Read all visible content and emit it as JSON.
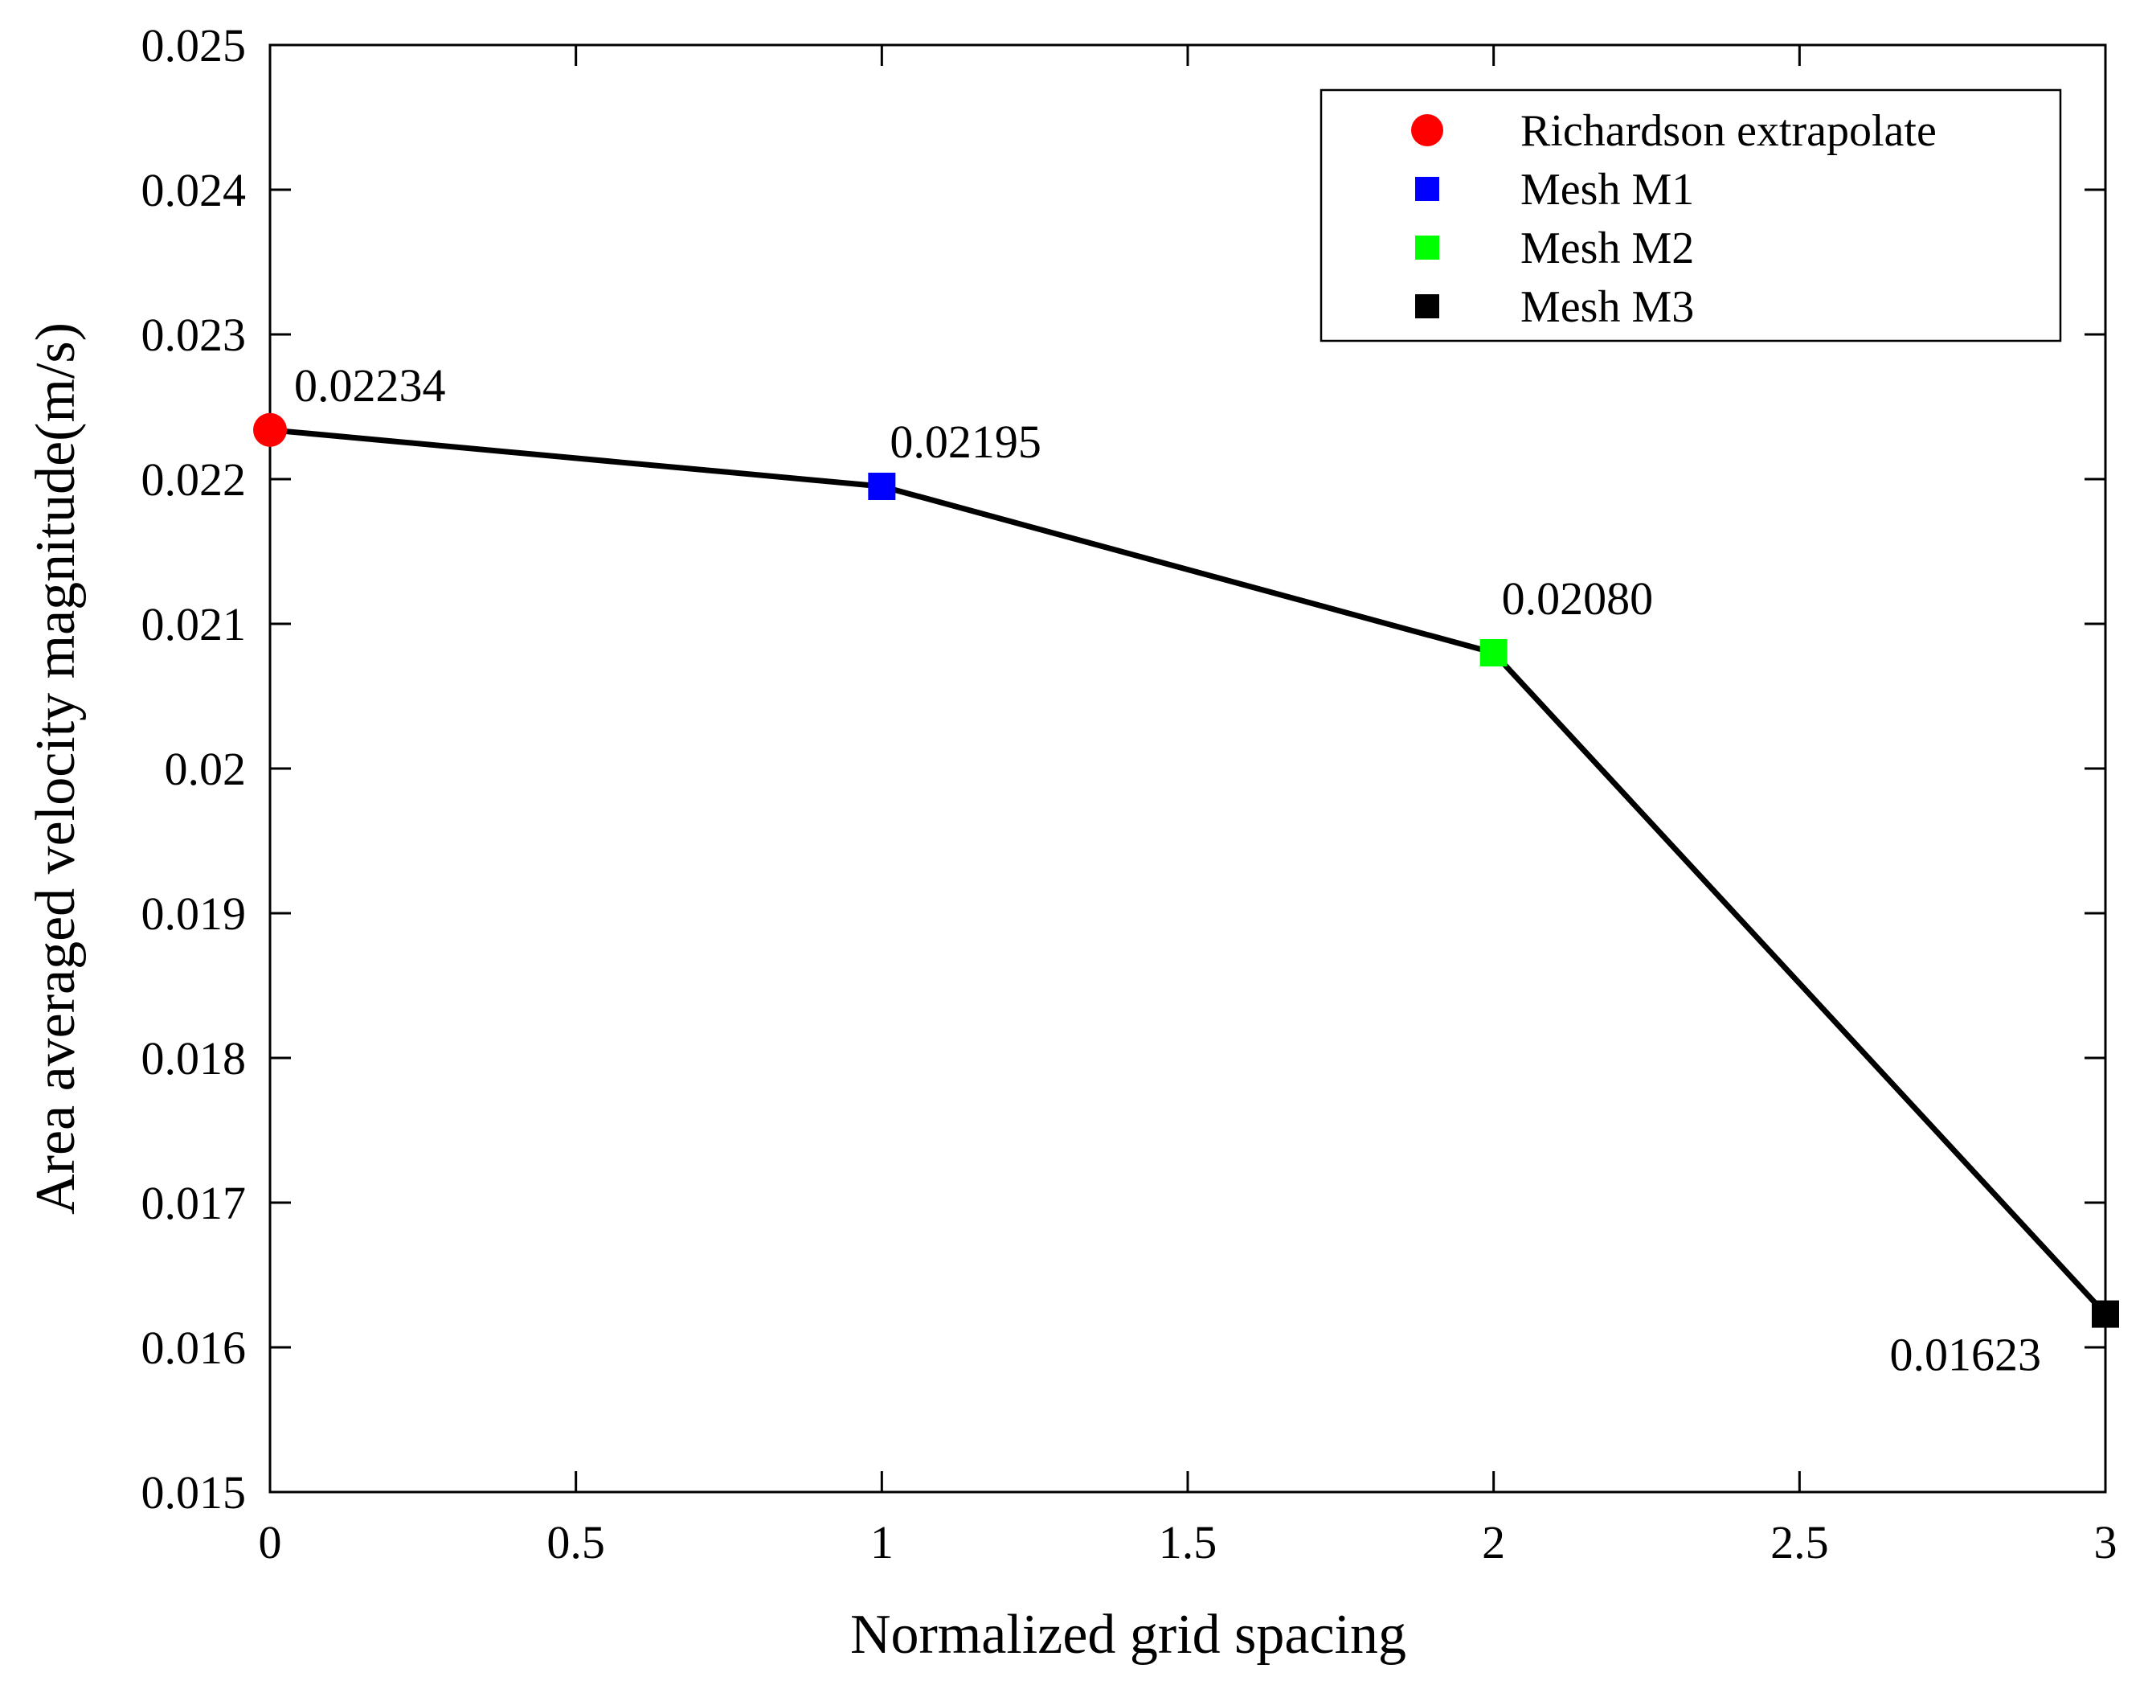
{
  "chart_data": {
    "type": "line",
    "xlabel": "Normalized grid spacing",
    "ylabel": "Area averaged velocity magnitude(m/s)",
    "xlim": [
      0,
      3
    ],
    "ylim": [
      0.015,
      0.025
    ],
    "x_ticks": [
      "0",
      "0.5",
      "1",
      "1.5",
      "2",
      "2.5",
      "3"
    ],
    "y_ticks": [
      "0.015",
      "0.016",
      "0.017",
      "0.018",
      "0.019",
      "0.02",
      "0.021",
      "0.022",
      "0.023",
      "0.024",
      "0.025"
    ],
    "line_color": "#000000",
    "grid": false,
    "legend_position": "top-right",
    "points": [
      {
        "name": "Richardson extrapolate",
        "x": 0,
        "y": 0.02234,
        "label": "0.02234",
        "marker": "circle",
        "color": "#ff0000"
      },
      {
        "name": "Mesh M1",
        "x": 1,
        "y": 0.02195,
        "label": "0.02195",
        "marker": "square",
        "color": "#0000ff"
      },
      {
        "name": "Mesh M2",
        "x": 2,
        "y": 0.0208,
        "label": "0.02080",
        "marker": "square",
        "color": "#00ff00"
      },
      {
        "name": "Mesh M3",
        "x": 3,
        "y": 0.01623,
        "label": "0.01623",
        "marker": "square",
        "color": "#000000"
      }
    ]
  }
}
